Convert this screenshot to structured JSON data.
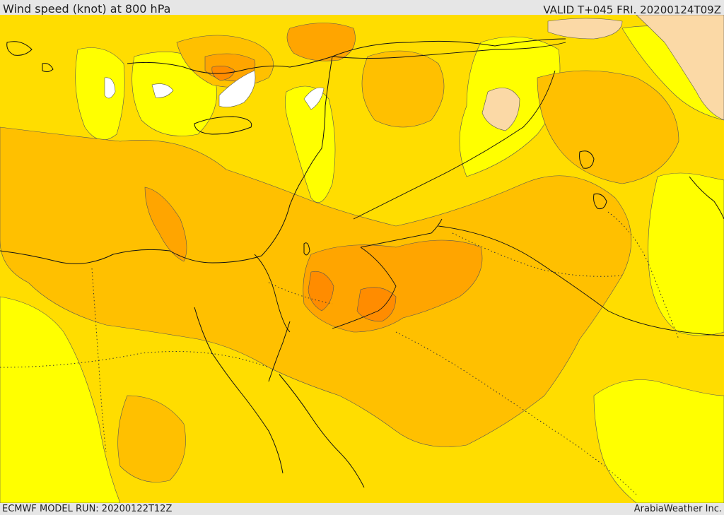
{
  "header": {
    "title": "Wind speed (knot) at 800 hPa",
    "valid": "VALID T+045 FRI. 20200124T09Z"
  },
  "footer": {
    "model_run": "ECMWF MODEL RUN: 20200122T12Z",
    "credit": "ArabiaWeather Inc."
  },
  "colors": {
    "band_light_yellow": "#ffff00",
    "band_gold": "#ffdd00",
    "band_light_orange": "#ffc000",
    "band_orange": "#ffa500",
    "band_dark_orange": "#ff8c00",
    "band_tan": "#fbd9a6",
    "band_white": "#ffffff"
  }
}
